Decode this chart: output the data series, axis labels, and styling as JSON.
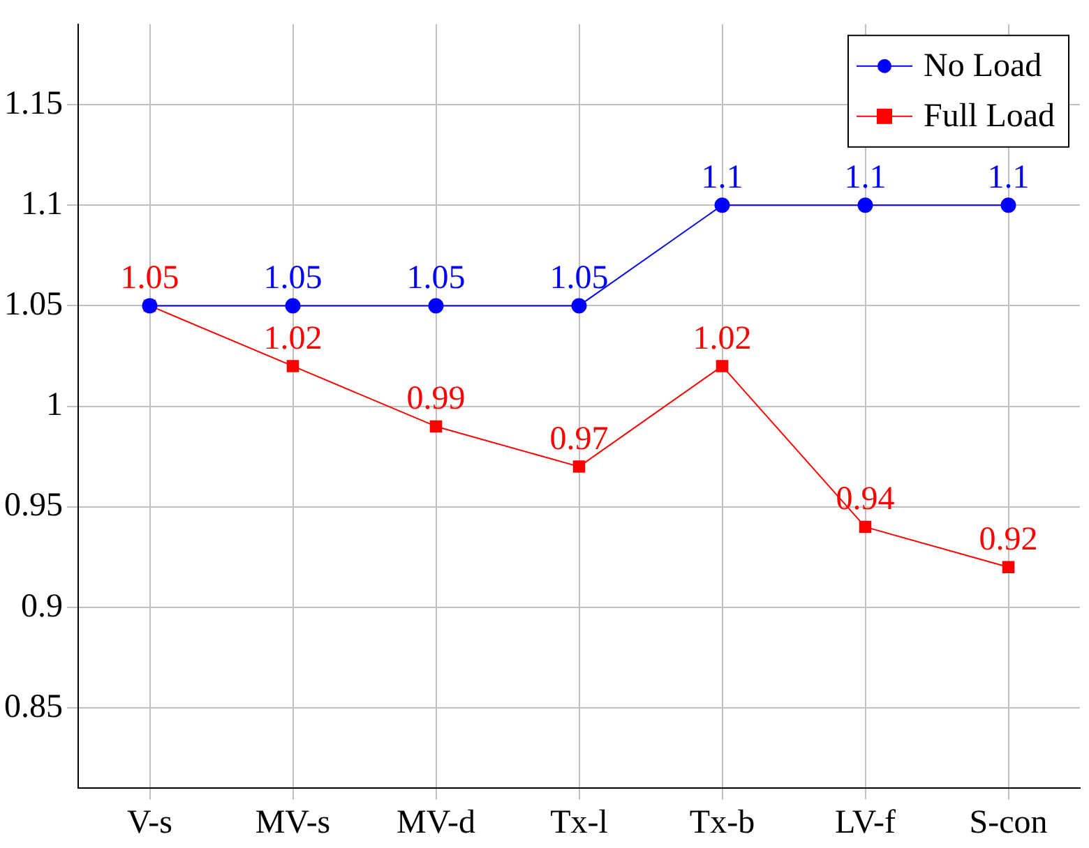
{
  "chart_data": {
    "type": "line",
    "categories": [
      "V-s",
      "MV-s",
      "MV-d",
      "Tx-l",
      "Tx-b",
      "LV-f",
      "S-con"
    ],
    "series": [
      {
        "name": "No Load",
        "color": "#0000ff",
        "marker": "circle",
        "values": [
          1.05,
          1.05,
          1.05,
          1.05,
          1.1,
          1.1,
          1.1
        ],
        "value_labels": [
          null,
          "1.05",
          "1.05",
          "1.05",
          "1.1",
          "1.1",
          "1.1"
        ]
      },
      {
        "name": "Full Load",
        "color": "#ff0000",
        "marker": "square",
        "values": [
          1.05,
          1.02,
          0.99,
          0.97,
          1.02,
          0.94,
          0.92
        ],
        "value_labels": [
          "1.05",
          "1.02",
          "0.99",
          "0.97",
          "1.02",
          "0.94",
          "0.92"
        ]
      }
    ],
    "ylim": [
      0.81,
      1.19
    ],
    "yticks": [
      0.85,
      0.9,
      0.95,
      1,
      1.05,
      1.1,
      1.15
    ],
    "grid": true,
    "legend": "top right",
    "line_style": "solid"
  }
}
